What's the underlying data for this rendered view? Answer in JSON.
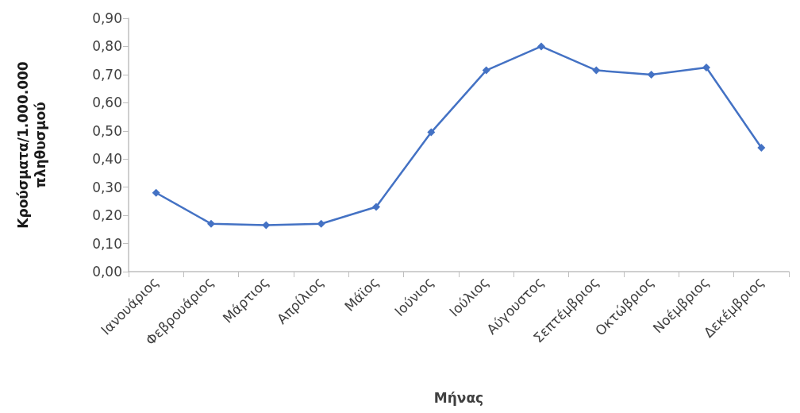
{
  "chart_data": {
    "type": "line",
    "xlabel": "Μήνας",
    "ylabel": "Κρούσματα/1.000.000 πληθυσμού",
    "categories": [
      "Ιανουάριος",
      "Φεβρουάριος",
      "Μάρτιος",
      "Απρίλιος",
      "Μάϊος",
      "Ιούνιος",
      "Ιούλιος",
      "Αύγουστος",
      "Σεπτέμβριος",
      "Οκτώβριος",
      "Νοέμβριος",
      "Δεκέμβριος"
    ],
    "series": [
      {
        "color": "#4472c4",
        "values": [
          0.28,
          0.17,
          0.165,
          0.17,
          0.23,
          0.495,
          0.715,
          0.8,
          0.715,
          0.7,
          0.725,
          0.44
        ]
      }
    ],
    "ylim": [
      0,
      0.9
    ],
    "yticks": [
      {
        "value": 0,
        "label": "0,00"
      },
      {
        "value": 0.1,
        "label": "0,10"
      },
      {
        "value": 0.2,
        "label": "0,20"
      },
      {
        "value": 0.3,
        "label": "0,30"
      },
      {
        "value": 0.4,
        "label": "0,40"
      },
      {
        "value": 0.5,
        "label": "0,50"
      },
      {
        "value": 0.6,
        "label": "0,60"
      },
      {
        "value": 0.7,
        "label": "0,70"
      },
      {
        "value": 0.8,
        "label": "0,80"
      },
      {
        "value": 0.9,
        "label": "0,90"
      }
    ],
    "grid": false,
    "marker": "diamond",
    "line_style": "solid"
  }
}
